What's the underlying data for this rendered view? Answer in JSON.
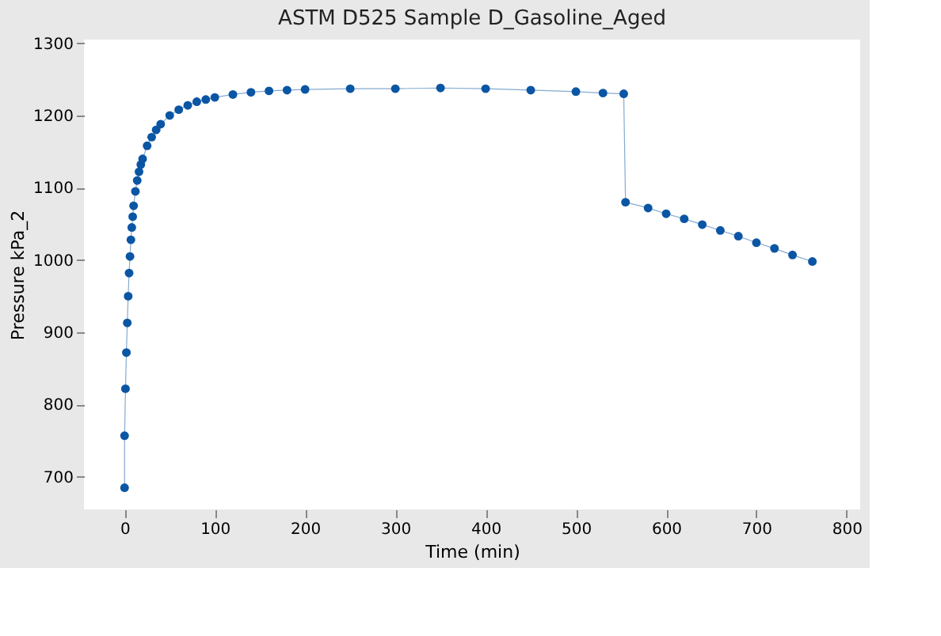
{
  "chart_data": {
    "type": "line",
    "title": "ASTM D525 Sample D_Gasoline_Aged",
    "xlabel": "Time (min)",
    "ylabel": "Pressure kPa_2",
    "x": [
      0,
      0,
      1,
      2,
      3,
      4,
      5,
      6,
      7,
      8,
      9,
      10,
      12,
      14,
      16,
      18,
      20,
      25,
      30,
      35,
      40,
      50,
      60,
      70,
      80,
      90,
      100,
      120,
      140,
      160,
      180,
      200,
      250,
      300,
      350,
      400,
      450,
      500,
      530,
      553,
      555,
      580,
      600,
      620,
      640,
      660,
      680,
      700,
      720,
      740,
      762
    ],
    "series": [
      {
        "color": "#0b56a4",
        "values": [
          685,
          757,
          822,
          872,
          913,
          950,
          982,
          1005,
          1028,
          1045,
          1060,
          1075,
          1095,
          1110,
          1122,
          1132,
          1140,
          1158,
          1170,
          1180,
          1188,
          1200,
          1208,
          1214,
          1219,
          1222,
          1225,
          1229,
          1232,
          1234,
          1235,
          1236,
          1237,
          1237,
          1238,
          1237,
          1235,
          1233,
          1231,
          1230,
          1080,
          1072,
          1064,
          1057,
          1049,
          1041,
          1033,
          1024,
          1016,
          1007,
          998
        ]
      }
    ],
    "xlim": [
      -45,
      815
    ],
    "ylim": [
      655,
      1305
    ],
    "xticks": [
      0,
      100,
      200,
      300,
      400,
      500,
      600,
      700,
      800
    ],
    "yticks": [
      700,
      800,
      900,
      1000,
      1100,
      1200,
      1300
    ],
    "marker": "circle",
    "line_style": "solid",
    "grid": false,
    "legend": false
  }
}
